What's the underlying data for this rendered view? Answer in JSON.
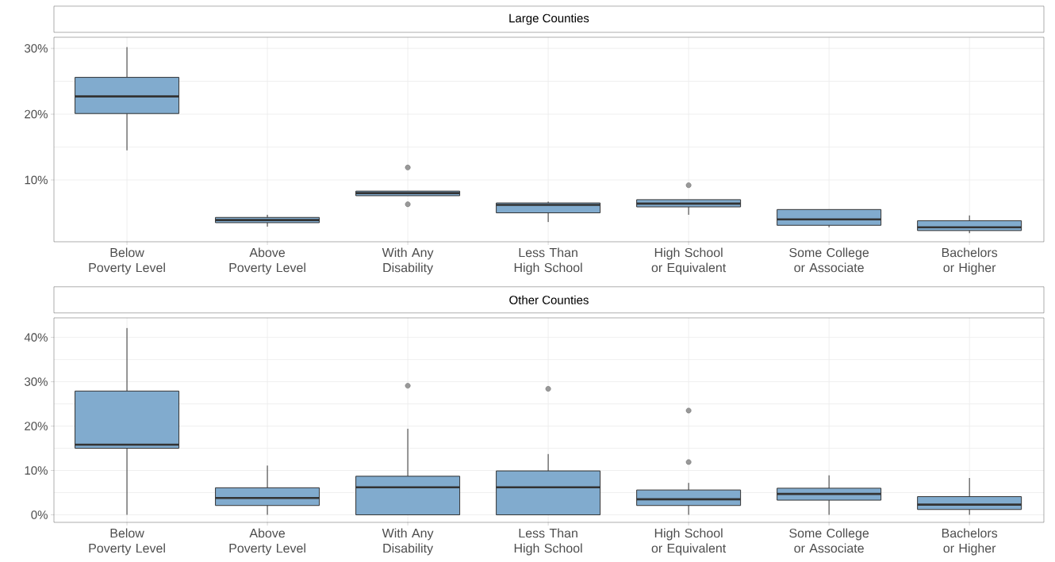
{
  "chart_data": [
    {
      "type": "box",
      "title": "Large Counties",
      "categories": [
        "Below Poverty Level",
        "Above Poverty Level",
        "With Any Disability",
        "Less Than High School",
        "High School or Equivalent",
        "Some College or Associate",
        "Bachelors or Higher"
      ],
      "color": "#7aa6cb",
      "ylim": [
        0.6,
        31.7
      ],
      "yticks": [
        {
          "value": 10,
          "label": "10%"
        },
        {
          "value": 20,
          "label": "20%"
        },
        {
          "value": 30,
          "label": "30%"
        }
      ],
      "grid": true,
      "boxes": [
        {
          "low": 14.5,
          "q1": 20.1,
          "median": 22.7,
          "q3": 25.6,
          "high": 30.2
        },
        {
          "low": 2.9,
          "q1": 3.5,
          "median": 3.9,
          "q3": 4.3,
          "high": 4.7
        },
        {
          "low": 7.6,
          "q1": 7.6,
          "median": 8.0,
          "q3": 8.3,
          "high": 8.3,
          "outliers": [
            11.9,
            6.3
          ]
        },
        {
          "low": 3.6,
          "q1": 5.0,
          "median": 6.2,
          "q3": 6.5,
          "high": 6.7
        },
        {
          "low": 4.7,
          "q1": 5.9,
          "median": 6.4,
          "q3": 7.0,
          "high": 7.0,
          "outliers": [
            9.2
          ]
        },
        {
          "low": 2.8,
          "q1": 3.1,
          "median": 4.0,
          "q3": 5.5,
          "high": 5.5
        },
        {
          "low": 1.9,
          "q1": 2.3,
          "median": 2.8,
          "q3": 3.8,
          "high": 4.6
        }
      ]
    },
    {
      "type": "box",
      "title": "Other Counties",
      "categories": [
        "Below Poverty Level",
        "Above Poverty Level",
        "With Any Disability",
        "Less Than High School",
        "High School or Equivalent",
        "Some College or Associate",
        "Bachelors or Higher"
      ],
      "color": "#7aa6cb",
      "ylim": [
        -1.7,
        44.4
      ],
      "yticks": [
        {
          "value": 0,
          "label": "0%"
        },
        {
          "value": 10,
          "label": "10%"
        },
        {
          "value": 20,
          "label": "20%"
        },
        {
          "value": 30,
          "label": "30%"
        },
        {
          "value": 40,
          "label": "40%"
        }
      ],
      "grid": true,
      "boxes": [
        {
          "low": 0,
          "q1": 15.0,
          "median": 15.8,
          "q3": 27.9,
          "high": 42.1
        },
        {
          "low": 0,
          "q1": 2.1,
          "median": 3.8,
          "q3": 6.1,
          "high": 11.1
        },
        {
          "low": 0,
          "q1": 0,
          "median": 6.2,
          "q3": 8.7,
          "high": 19.4,
          "outliers": [
            29.1
          ]
        },
        {
          "low": 0,
          "q1": 0,
          "median": 6.2,
          "q3": 9.9,
          "high": 13.7,
          "outliers": [
            28.4
          ]
        },
        {
          "low": 0,
          "q1": 2.1,
          "median": 3.5,
          "q3": 5.6,
          "high": 7.2,
          "outliers": [
            23.5,
            11.9
          ]
        },
        {
          "low": 0,
          "q1": 3.3,
          "median": 4.7,
          "q3": 6.0,
          "high": 8.9
        },
        {
          "low": 0,
          "q1": 1.2,
          "median": 2.3,
          "q3": 4.1,
          "high": 8.3
        }
      ]
    }
  ]
}
